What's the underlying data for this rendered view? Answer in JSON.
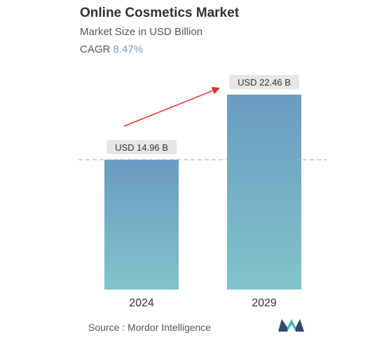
{
  "header": {
    "title": "Online Cosmetics Market",
    "subtitle": "Market Size in USD Billion",
    "cagr_label": "CAGR",
    "cagr_value": "8.47%"
  },
  "chart_data": {
    "type": "bar",
    "categories": [
      "2024",
      "2029"
    ],
    "values": [
      14.96,
      22.46
    ],
    "data_labels": [
      "USD 14.96 B",
      "USD 22.46 B"
    ],
    "title": "Online Cosmetics Market",
    "subtitle": "Market Size in USD Billion",
    "ylim": [
      0,
      22.46
    ],
    "grid": false,
    "legend": "none"
  },
  "footer": {
    "source_label": "Source :",
    "source_name": "Mordor Intelligence"
  },
  "colors": {
    "bar_top": "#6a9bc1",
    "bar_bottom": "#82c4ca",
    "arrow": "#e8322f",
    "dashed_line": "#7fb0c9",
    "label_bg": "#e6e6e6",
    "cagr_value": "#6a9ec2",
    "logo_dark": "#2f4a73",
    "logo_teal": "#3fb7c0"
  }
}
